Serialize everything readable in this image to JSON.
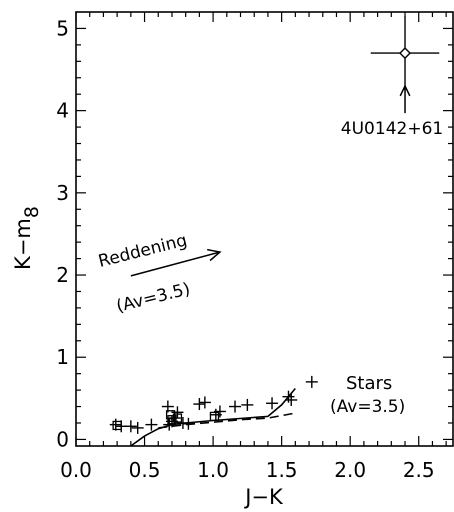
{
  "chart_data": {
    "type": "scatter",
    "xlabel": "J−K",
    "ylabel": "K−m",
    "ylabel_sub": "8",
    "xlim": [
      0.0,
      2.75
    ],
    "ylim": [
      -0.08,
      5.2
    ],
    "x_ticks": [
      0.0,
      0.5,
      1.0,
      1.5,
      2.0,
      2.5
    ],
    "x_tick_labels": [
      "0.0",
      "0.5",
      "1.0",
      "1.5",
      "2.0",
      "2.5"
    ],
    "y_ticks": [
      0,
      1,
      2,
      3,
      4,
      5
    ],
    "y_tick_labels": [
      "0",
      "1",
      "2",
      "3",
      "4",
      "5"
    ],
    "series": [
      {
        "marker": "plus",
        "points": [
          [
            0.29,
            0.18
          ],
          [
            0.33,
            0.16
          ],
          [
            0.4,
            0.16
          ],
          [
            0.45,
            0.14
          ],
          [
            0.55,
            0.18
          ],
          [
            0.67,
            0.4
          ],
          [
            0.68,
            0.18
          ],
          [
            0.7,
            0.22
          ],
          [
            0.72,
            0.26
          ],
          [
            0.74,
            0.33
          ],
          [
            0.78,
            0.2
          ],
          [
            0.82,
            0.19
          ],
          [
            0.9,
            0.43
          ],
          [
            0.94,
            0.45
          ],
          [
            1.02,
            0.3
          ],
          [
            1.05,
            0.34
          ],
          [
            1.16,
            0.4
          ],
          [
            1.25,
            0.42
          ],
          [
            1.43,
            0.44
          ],
          [
            1.55,
            0.52
          ],
          [
            1.57,
            0.48
          ],
          [
            1.72,
            0.7
          ]
        ]
      },
      {
        "marker": "square",
        "points": [
          [
            0.3,
            0.17
          ],
          [
            0.69,
            0.3
          ],
          [
            0.7,
            0.24
          ],
          [
            0.74,
            0.26
          ],
          [
            1.01,
            0.28
          ]
        ]
      },
      {
        "name": "4U0142+61",
        "marker": "diamond",
        "points": [
          [
            2.4,
            4.7
          ]
        ],
        "x_err": 0.25,
        "y_err": 0.45
      }
    ],
    "lines": [
      {
        "style": "solid",
        "points": [
          [
            0.4,
            -0.08
          ],
          [
            0.5,
            0.04
          ],
          [
            0.6,
            0.13
          ],
          [
            0.7,
            0.18
          ],
          [
            0.8,
            0.2
          ],
          [
            1.0,
            0.23
          ],
          [
            1.4,
            0.28
          ],
          [
            1.5,
            0.42
          ],
          [
            1.6,
            0.62
          ]
        ]
      },
      {
        "style": "dashed",
        "points": [
          [
            0.6,
            0.14
          ],
          [
            0.8,
            0.18
          ],
          [
            1.0,
            0.21
          ],
          [
            1.2,
            0.24
          ],
          [
            1.4,
            0.26
          ],
          [
            1.6,
            0.32
          ]
        ]
      }
    ],
    "annotations": {
      "source_label": "4U0142+61",
      "reddening_label": "Reddening",
      "reddening_av": "(Av=3.5)",
      "stars_label": "Stars",
      "stars_av": "(Av=3.5)"
    },
    "reddening_vector": {
      "from": [
        0.4,
        1.99
      ],
      "to": [
        1.05,
        2.28
      ]
    },
    "source_arrow": {
      "from": [
        2.4,
        3.97
      ],
      "to": [
        2.4,
        4.3
      ]
    }
  }
}
